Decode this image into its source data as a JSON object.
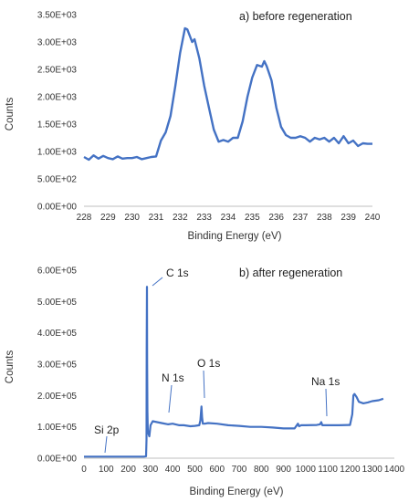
{
  "chart_data": [
    {
      "id": "top",
      "type": "line",
      "title": "a) before regeneration",
      "xlabel": "Binding Energy (eV)",
      "ylabel": "Counts",
      "xlim": [
        228,
        240
      ],
      "ylim": [
        0,
        3500
      ],
      "xticks": [
        228,
        229,
        230,
        231,
        232,
        233,
        234,
        235,
        236,
        237,
        238,
        239,
        240
      ],
      "yticks": [
        0,
        500,
        1000,
        1500,
        2000,
        2500,
        3000,
        3500
      ],
      "ytick_labels": [
        "0.00E+00",
        "5.00E+02",
        "1.00E+03",
        "1.50E+03",
        "2.00E+03",
        "2.50E+03",
        "3.00E+03",
        "3.50E+03"
      ],
      "series_color": "#4472C4",
      "grid": false,
      "series": [
        {
          "x": [
            228.0,
            228.2,
            228.4,
            228.6,
            228.8,
            229.0,
            229.2,
            229.4,
            229.6,
            229.8,
            230.0,
            230.2,
            230.4,
            230.6,
            230.8,
            231.0,
            231.2,
            231.4,
            231.6,
            231.8,
            232.0,
            232.2,
            232.3,
            232.5,
            232.6,
            232.8,
            233.0,
            233.2,
            233.4,
            233.6,
            233.8,
            234.0,
            234.2,
            234.4,
            234.6,
            234.8,
            235.0,
            235.2,
            235.4,
            235.5,
            235.6,
            235.8,
            236.0,
            236.2,
            236.4,
            236.6,
            236.8,
            237.0,
            237.2,
            237.4,
            237.6,
            237.8,
            238.0,
            238.2,
            238.4,
            238.6,
            238.8,
            239.0,
            239.2,
            239.4,
            239.6,
            239.8,
            240.0
          ],
          "y": [
            900,
            850,
            930,
            870,
            920,
            880,
            860,
            910,
            870,
            880,
            880,
            900,
            860,
            880,
            900,
            910,
            1200,
            1350,
            1650,
            2200,
            2800,
            3250,
            3230,
            3000,
            3050,
            2700,
            2200,
            1800,
            1400,
            1180,
            1210,
            1180,
            1250,
            1250,
            1550,
            2000,
            2350,
            2580,
            2550,
            2650,
            2560,
            2300,
            1800,
            1450,
            1300,
            1250,
            1250,
            1280,
            1250,
            1180,
            1250,
            1220,
            1250,
            1180,
            1250,
            1150,
            1280,
            1150,
            1200,
            1100,
            1150,
            1140,
            1140
          ]
        }
      ],
      "annotations": []
    },
    {
      "id": "bottom",
      "type": "line",
      "title": "b) after regeneration",
      "xlabel": "Binding Energy (eV)",
      "ylabel": "Counts",
      "xlim": [
        0,
        1400
      ],
      "ylim": [
        0,
        600000
      ],
      "xticks": [
        0,
        100,
        200,
        300,
        400,
        500,
        600,
        700,
        800,
        900,
        1000,
        1100,
        1200,
        1300,
        1400
      ],
      "yticks": [
        0,
        100000,
        200000,
        300000,
        400000,
        500000,
        600000
      ],
      "ytick_labels": [
        "0.00E+00",
        "1.00E+05",
        "2.00E+05",
        "3.00E+05",
        "4.00E+05",
        "5.00E+05",
        "6.00E+05"
      ],
      "series_color": "#4472C4",
      "grid": false,
      "series": [
        {
          "x": [
            0,
            50,
            100,
            150,
            200,
            250,
            270,
            280,
            282,
            283,
            284,
            285,
            286,
            288,
            290,
            295,
            300,
            310,
            330,
            350,
            380,
            400,
            430,
            450,
            480,
            500,
            520,
            525,
            530,
            533,
            536,
            545,
            560,
            600,
            650,
            700,
            750,
            800,
            850,
            900,
            950,
            965,
            970,
            980,
            1000,
            1050,
            1065,
            1070,
            1075,
            1100,
            1150,
            1200,
            1210,
            1215,
            1220,
            1230,
            1240,
            1260,
            1280,
            1300,
            1330,
            1350
          ],
          "y": [
            5000,
            5000,
            5000,
            5000,
            5000,
            5000,
            5000,
            6000,
            60000,
            350000,
            547000,
            300000,
            150000,
            90000,
            80000,
            70000,
            105000,
            118000,
            115000,
            112000,
            108000,
            110000,
            105000,
            105000,
            102000,
            103000,
            105000,
            120000,
            165000,
            130000,
            110000,
            110000,
            112000,
            110000,
            105000,
            103000,
            100000,
            100000,
            98000,
            95000,
            95000,
            110000,
            102000,
            105000,
            105000,
            106000,
            108000,
            115000,
            105000,
            105000,
            105000,
            106000,
            140000,
            200000,
            205000,
            195000,
            180000,
            175000,
            178000,
            182000,
            185000,
            190000
          ]
        }
      ],
      "annotations": [
        {
          "text": "C 1s",
          "x": 284,
          "y": 547000
        },
        {
          "text": "N 1s",
          "x": 400,
          "y": 125000
        },
        {
          "text": "O 1s",
          "x": 530,
          "y": 165000
        },
        {
          "text": "Na 1s",
          "x": 1070,
          "y": 115000
        },
        {
          "text": "Si 2p",
          "x": 100,
          "y": 10000
        }
      ]
    }
  ]
}
